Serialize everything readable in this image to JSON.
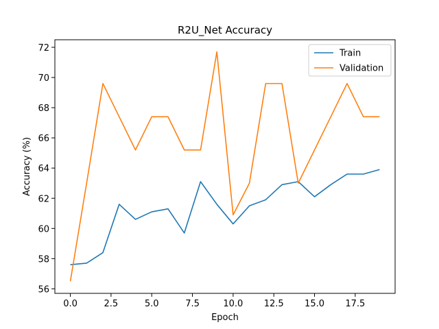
{
  "chart_data": {
    "type": "line",
    "title": "R2U_Net Accuracy",
    "xlabel": "Epoch",
    "ylabel": "Accuracy (%)",
    "xlim": [
      -0.95,
      19.95
    ],
    "ylim": [
      55.7,
      72.5
    ],
    "xticks": [
      0.0,
      2.5,
      5.0,
      7.5,
      10.0,
      12.5,
      15.0,
      17.5
    ],
    "xtick_labels": [
      "0.0",
      "2.5",
      "5.0",
      "7.5",
      "10.0",
      "12.5",
      "15.0",
      "17.5"
    ],
    "yticks": [
      56,
      58,
      60,
      62,
      64,
      66,
      68,
      70,
      72
    ],
    "ytick_labels": [
      "56",
      "58",
      "60",
      "62",
      "64",
      "66",
      "68",
      "70",
      "72"
    ],
    "grid": false,
    "legend_position": "top-right",
    "x": [
      0,
      1,
      2,
      3,
      4,
      5,
      6,
      7,
      8,
      9,
      10,
      11,
      12,
      13,
      14,
      15,
      16,
      17,
      18,
      19
    ],
    "series": [
      {
        "name": "Train",
        "color": "#1f77b4",
        "values": [
          57.6,
          57.7,
          58.4,
          61.6,
          60.6,
          61.1,
          61.3,
          59.7,
          63.1,
          61.6,
          60.3,
          61.5,
          61.9,
          62.9,
          63.1,
          62.1,
          62.9,
          63.6,
          63.6,
          63.9
        ]
      },
      {
        "name": "Validation",
        "color": "#ff7f0e",
        "values": [
          56.5,
          63.0,
          69.6,
          67.4,
          65.2,
          67.4,
          67.4,
          65.2,
          65.2,
          71.7,
          60.9,
          63.0,
          69.6,
          69.6,
          63.0,
          65.2,
          67.4,
          69.6,
          67.4,
          67.4
        ]
      }
    ]
  }
}
